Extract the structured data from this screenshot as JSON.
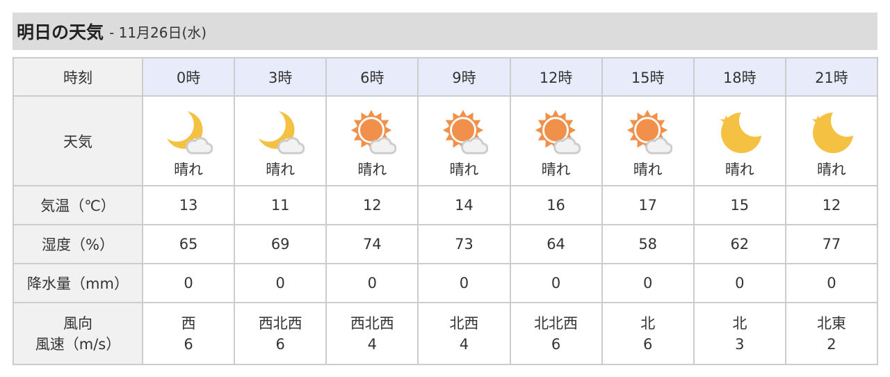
{
  "header": {
    "title": "明日の天気",
    "date": "- 11月26日(水)"
  },
  "colors": {
    "moon": "#f5c143",
    "sun": "#f0904a",
    "cloud": "#f2f2f2",
    "header_bg": "#e8ecfa"
  },
  "labels": {
    "time": "時刻",
    "weather": "天気",
    "temp": "気温（℃）",
    "humidity": "湿度（%）",
    "precip": "降水量（mm）",
    "wind_dir": "風向",
    "wind_speed": "風速（m/s）"
  },
  "hours": [
    {
      "time": "0時",
      "icon": "moon-cloud-icon",
      "weather": "晴れ",
      "temp": "13",
      "humidity": "65",
      "precip": "0",
      "wind_dir": "西",
      "wind_speed": "6"
    },
    {
      "time": "3時",
      "icon": "moon-cloud-icon",
      "weather": "晴れ",
      "temp": "11",
      "humidity": "69",
      "precip": "0",
      "wind_dir": "西北西",
      "wind_speed": "6"
    },
    {
      "time": "6時",
      "icon": "sun-cloud-icon",
      "weather": "晴れ",
      "temp": "12",
      "humidity": "74",
      "precip": "0",
      "wind_dir": "西北西",
      "wind_speed": "4"
    },
    {
      "time": "9時",
      "icon": "sun-cloud-icon",
      "weather": "晴れ",
      "temp": "14",
      "humidity": "73",
      "precip": "0",
      "wind_dir": "北西",
      "wind_speed": "4"
    },
    {
      "time": "12時",
      "icon": "sun-cloud-icon",
      "weather": "晴れ",
      "temp": "16",
      "humidity": "64",
      "precip": "0",
      "wind_dir": "北北西",
      "wind_speed": "6"
    },
    {
      "time": "15時",
      "icon": "sun-cloud-icon",
      "weather": "晴れ",
      "temp": "17",
      "humidity": "58",
      "precip": "0",
      "wind_dir": "北",
      "wind_speed": "6"
    },
    {
      "time": "18時",
      "icon": "moon-star-icon",
      "weather": "晴れ",
      "temp": "15",
      "humidity": "62",
      "precip": "0",
      "wind_dir": "北",
      "wind_speed": "3"
    },
    {
      "time": "21時",
      "icon": "moon-star-icon",
      "weather": "晴れ",
      "temp": "12",
      "humidity": "77",
      "precip": "0",
      "wind_dir": "北東",
      "wind_speed": "2"
    }
  ]
}
